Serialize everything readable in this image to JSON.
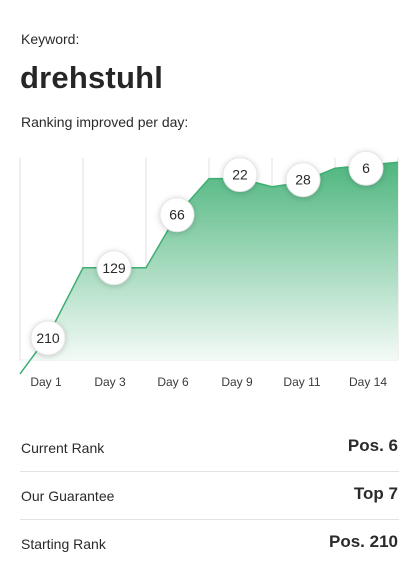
{
  "keyword_label": "Keyword:",
  "keyword": "drehstuhl",
  "ranking_caption": "Ranking improved per day:",
  "chart_data": {
    "type": "area",
    "title": "",
    "xlabel": "",
    "ylabel": "",
    "categories": [
      "Day 1",
      "Day 3",
      "Day 6",
      "Day 9",
      "Day 11",
      "Day 14"
    ],
    "series": [
      {
        "values": [
          210,
          129,
          66,
          22,
          28,
          6
        ]
      }
    ],
    "y_inverted": true,
    "grid": "vertical",
    "colors": {
      "line": "#3fae72",
      "fill_top": "#4fb67f",
      "fill_bottom": "#ffffff"
    }
  },
  "summary": [
    {
      "label": "Current Rank",
      "value": "Pos. 6"
    },
    {
      "label": "Our Guarantee",
      "value": "Top 7"
    },
    {
      "label": "Starting Rank",
      "value": "Pos. 210"
    }
  ]
}
